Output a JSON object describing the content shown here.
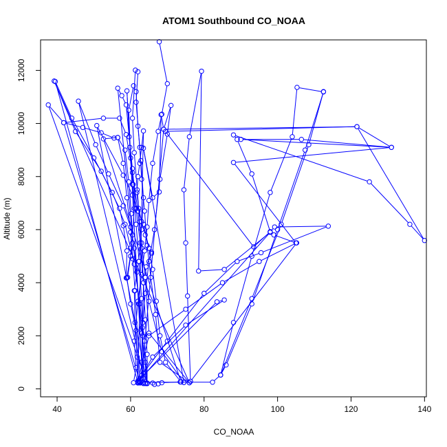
{
  "chart_data": {
    "type": "line",
    "title": "ATOM1 Southbound CO_NOAA",
    "xlabel": "CO_NOAA",
    "ylabel": "Altitude (m)",
    "xlim": [
      35.5,
      140.5
    ],
    "ylim": [
      -300,
      13150
    ],
    "x_ticks": [
      40,
      60,
      80,
      100,
      120,
      140
    ],
    "y_ticks": [
      0,
      2000,
      4000,
      6000,
      8000,
      10000,
      12000
    ],
    "grid": false,
    "legend": "none",
    "series_color": "#0000ff",
    "series": [
      {
        "points": [
          [
            67.8,
            13080
          ],
          [
            70.0,
            11500
          ],
          [
            68.5,
            10350
          ],
          [
            67.5,
            9700
          ],
          [
            66.0,
            8500
          ],
          [
            65.0,
            7100
          ],
          [
            64.5,
            6100
          ],
          [
            63.8,
            5200
          ],
          [
            63.0,
            4300
          ],
          [
            62.0,
            3300
          ],
          [
            61.0,
            1800
          ],
          [
            61.5,
            800
          ],
          [
            60.8,
            230
          ],
          [
            62.0,
            220
          ],
          [
            62.3,
            290
          ],
          [
            62.6,
            235
          ],
          [
            63.5,
            200
          ],
          [
            64.0,
            210
          ],
          [
            66.0,
            220
          ],
          [
            66.5,
            170
          ],
          [
            67.5,
            190
          ],
          [
            68.5,
            230
          ],
          [
            73.5,
            260
          ],
          [
            74.5,
            240
          ],
          [
            76.3,
            280
          ],
          [
            76.0,
            230
          ],
          [
            65.0,
            2100
          ],
          [
            64.0,
            4200
          ],
          [
            63.0,
            5500
          ],
          [
            62.5,
            6300
          ],
          [
            61.8,
            7500
          ],
          [
            61.0,
            8900
          ],
          [
            60.5,
            10200
          ],
          [
            61.3,
            12010
          ],
          [
            62.0,
            11950
          ],
          [
            61.5,
            10800
          ],
          [
            62.5,
            9100
          ],
          [
            63.0,
            7900
          ],
          [
            63.8,
            6700
          ],
          [
            64.5,
            5400
          ],
          [
            65.5,
            4200
          ],
          [
            66.8,
            2800
          ],
          [
            68.0,
            1000
          ],
          [
            76.0,
            230
          ],
          [
            39.2,
            11600
          ],
          [
            45.0,
            9700
          ],
          [
            52.0,
            8200
          ],
          [
            57.0,
            6800
          ],
          [
            58.0,
            6150
          ],
          [
            59.0,
            5200
          ],
          [
            58.8,
            4180
          ],
          [
            59.2,
            4200
          ],
          [
            60.0,
            5000
          ],
          [
            60.5,
            5800
          ],
          [
            61.0,
            6800
          ],
          [
            60.5,
            7700
          ],
          [
            60.0,
            8700
          ],
          [
            59.5,
            10500
          ],
          [
            60.8,
            11420
          ],
          [
            61.5,
            11200
          ],
          [
            62.0,
            9900
          ],
          [
            62.8,
            8600
          ],
          [
            63.5,
            7200
          ],
          [
            63.0,
            6000
          ],
          [
            62.2,
            4800
          ],
          [
            61.0,
            3700
          ],
          [
            61.2,
            2500
          ],
          [
            61.8,
            1200
          ],
          [
            62.0,
            220
          ],
          [
            39.5,
            11580
          ],
          [
            44.0,
            10200
          ],
          [
            50.0,
            8700
          ],
          [
            55.0,
            7400
          ],
          [
            58.5,
            6200
          ],
          [
            60.0,
            5300
          ],
          [
            61.0,
            4700
          ],
          [
            62.5,
            3200
          ],
          [
            63.8,
            1800
          ],
          [
            64.5,
            220
          ],
          [
            37.6,
            10700
          ],
          [
            41.8,
            10030
          ],
          [
            47.0,
            9850
          ],
          [
            52.0,
            9650
          ],
          [
            55.5,
            9450
          ],
          [
            56.5,
            9470
          ],
          [
            58.0,
            8500
          ],
          [
            59.0,
            7200
          ],
          [
            60.0,
            5900
          ],
          [
            60.6,
            4900
          ],
          [
            61.2,
            3700
          ],
          [
            62.6,
            220
          ],
          [
            41.8,
            10030
          ],
          [
            52.6,
            10200
          ],
          [
            57.0,
            10200
          ],
          [
            58.8,
            9580
          ],
          [
            60.5,
            8150
          ],
          [
            62.0,
            6700
          ],
          [
            63.0,
            5300
          ],
          [
            63.5,
            4000
          ],
          [
            64.0,
            2600
          ],
          [
            64.5,
            1300
          ],
          [
            64.5,
            200
          ],
          [
            56.5,
            11330
          ],
          [
            57.6,
            11050
          ],
          [
            58.8,
            10700
          ],
          [
            59.6,
            9500
          ],
          [
            60.5,
            8300
          ],
          [
            61.5,
            6800
          ],
          [
            62.6,
            5500
          ],
          [
            63.5,
            4000
          ],
          [
            63.3,
            2500
          ],
          [
            63.0,
            1000
          ],
          [
            63.3,
            230
          ],
          [
            59.0,
            11230
          ],
          [
            59.8,
            9100
          ],
          [
            60.7,
            7700
          ],
          [
            61.5,
            6200
          ],
          [
            62.3,
            4800
          ],
          [
            63.0,
            3400
          ],
          [
            63.3,
            2000
          ],
          [
            63.5,
            400
          ],
          [
            64.0,
            200
          ],
          [
            45.8,
            10840
          ],
          [
            50.5,
            9200
          ],
          [
            54.0,
            8100
          ],
          [
            58.0,
            6900
          ],
          [
            60.0,
            6100
          ],
          [
            61.0,
            5300
          ],
          [
            61.7,
            4400
          ],
          [
            62.2,
            3200
          ],
          [
            63.0,
            2100
          ],
          [
            64.0,
            1000
          ],
          [
            64.5,
            200
          ],
          [
            50.8,
            9920
          ],
          [
            58.0,
            8050
          ],
          [
            60.5,
            7300
          ],
          [
            62.0,
            6700
          ],
          [
            63.5,
            6200
          ],
          [
            65.0,
            5300
          ],
          [
            66.0,
            4500
          ],
          [
            67.0,
            3300
          ],
          [
            68.0,
            2000
          ],
          [
            69.5,
            1000
          ],
          [
            73.7,
            260
          ],
          [
            52.6,
            9420
          ],
          [
            56.5,
            9470
          ],
          [
            58.5,
            9000
          ],
          [
            59.5,
            7800
          ],
          [
            60.2,
            6600
          ],
          [
            60.5,
            5500
          ],
          [
            59.0,
            4180
          ],
          [
            60.0,
            3200
          ],
          [
            61.5,
            2200
          ],
          [
            62.0,
            230
          ],
          [
            63.5,
            9720
          ],
          [
            63.0,
            9100
          ],
          [
            62.5,
            8500
          ],
          [
            62.0,
            8000
          ],
          [
            61.7,
            7400
          ],
          [
            62.2,
            6800
          ],
          [
            63.0,
            6300
          ],
          [
            64.0,
            5800
          ],
          [
            65.0,
            5300
          ],
          [
            65.7,
            5150
          ],
          [
            65.7,
            5100
          ],
          [
            64.2,
            4600
          ],
          [
            64.0,
            4200
          ],
          [
            65.0,
            3300
          ],
          [
            68.5,
            1400
          ],
          [
            74.5,
            240
          ],
          [
            63.5,
            9070
          ],
          [
            66.0,
            7200
          ],
          [
            67.8,
            7420
          ],
          [
            68.3,
            10330
          ],
          [
            69.0,
            9780
          ],
          [
            71.0,
            10680
          ],
          [
            70.0,
            9600
          ],
          [
            68.0,
            7900
          ],
          [
            66.5,
            6000
          ],
          [
            65.0,
            4800
          ],
          [
            64.0,
            3600
          ],
          [
            63.2,
            2300
          ],
          [
            63.0,
            400
          ],
          [
            69.0,
            9780
          ],
          [
            121.6,
            9880
          ],
          [
            131.0,
            9100
          ],
          [
            90.0,
            9400
          ],
          [
            106.5,
            9400
          ],
          [
            131.0,
            9100
          ],
          [
            88.0,
            8530
          ],
          [
            105.0,
            5500
          ],
          [
            99.0,
            5800
          ],
          [
            98.0,
            5920
          ],
          [
            93.5,
            5350
          ],
          [
            69.5,
            9700
          ],
          [
            121.6,
            9880
          ],
          [
            140.0,
            5590
          ],
          [
            136.0,
            6200
          ],
          [
            125.0,
            7800
          ],
          [
            88.0,
            9570
          ],
          [
            89.0,
            9400
          ],
          [
            93.0,
            8100
          ],
          [
            98.0,
            5920
          ],
          [
            99.2,
            6100
          ],
          [
            113.8,
            6130
          ],
          [
            95.5,
            5130
          ],
          [
            89.0,
            4800
          ],
          [
            80.0,
            3600
          ],
          [
            70.0,
            1800
          ],
          [
            63.5,
            600
          ],
          [
            62.0,
            260
          ],
          [
            98.0,
            5900
          ],
          [
            85.5,
            4500
          ],
          [
            78.5,
            4440
          ],
          [
            79.3,
            11970
          ],
          [
            76.0,
            9500
          ],
          [
            74.5,
            7500
          ],
          [
            75.0,
            5500
          ],
          [
            75.5,
            3500
          ],
          [
            76.3,
            280
          ],
          [
            105.2,
            5500
          ],
          [
            95.0,
            4800
          ],
          [
            85.0,
            4000
          ],
          [
            75.0,
            3000
          ],
          [
            65.0,
            2000
          ],
          [
            62.0,
            300
          ],
          [
            83.5,
            3280
          ],
          [
            85.5,
            3350
          ],
          [
            75.0,
            2400
          ],
          [
            66.0,
            1200
          ],
          [
            63.0,
            500
          ],
          [
            62.5,
            250
          ],
          [
            82.3,
            250
          ],
          [
            84.5,
            520
          ],
          [
            88.0,
            2500
          ],
          [
            93.0,
            5000
          ],
          [
            98.0,
            7400
          ],
          [
            104.0,
            9500
          ],
          [
            105.3,
            11360
          ],
          [
            112.5,
            11190
          ],
          [
            107.5,
            9000
          ],
          [
            100.0,
            6000
          ],
          [
            93.0,
            3200
          ],
          [
            86.0,
            900
          ],
          [
            84.5,
            520
          ],
          [
            84.5,
            520
          ],
          [
            93.0,
            3400
          ],
          [
            101.0,
            6200
          ],
          [
            108.5,
            9200
          ],
          [
            112.5,
            11200
          ]
        ]
      }
    ]
  }
}
